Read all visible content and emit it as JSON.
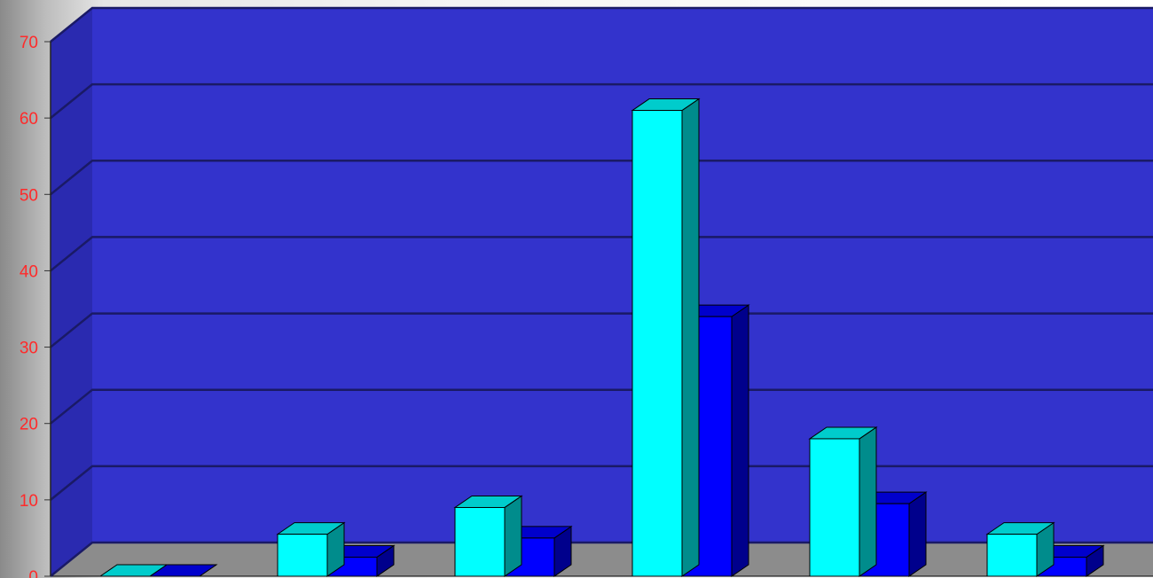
{
  "chart_data": {
    "type": "bar",
    "title": "",
    "xlabel": "",
    "ylabel": "",
    "ylim": [
      0,
      70
    ],
    "yticks": [
      "0",
      "10",
      "20",
      "30",
      "40",
      "50",
      "60",
      "70"
    ],
    "grid": true,
    "three_d": true,
    "categories": [
      "",
      "",
      "",
      "",
      "",
      ""
    ],
    "series": [
      {
        "color": "#00ffff",
        "values": [
          0,
          5.5,
          9,
          61,
          18,
          5.5
        ]
      },
      {
        "color": "#0000ff",
        "values": [
          0,
          2.5,
          5,
          34,
          9.5,
          2.5
        ]
      }
    ]
  },
  "colors": {
    "wall": "#3333cc",
    "side_wall": "#2a2ab0",
    "floor": "#8c8c8c",
    "gridline": "#1a1a66",
    "tick_label": "#ff2a2a"
  }
}
